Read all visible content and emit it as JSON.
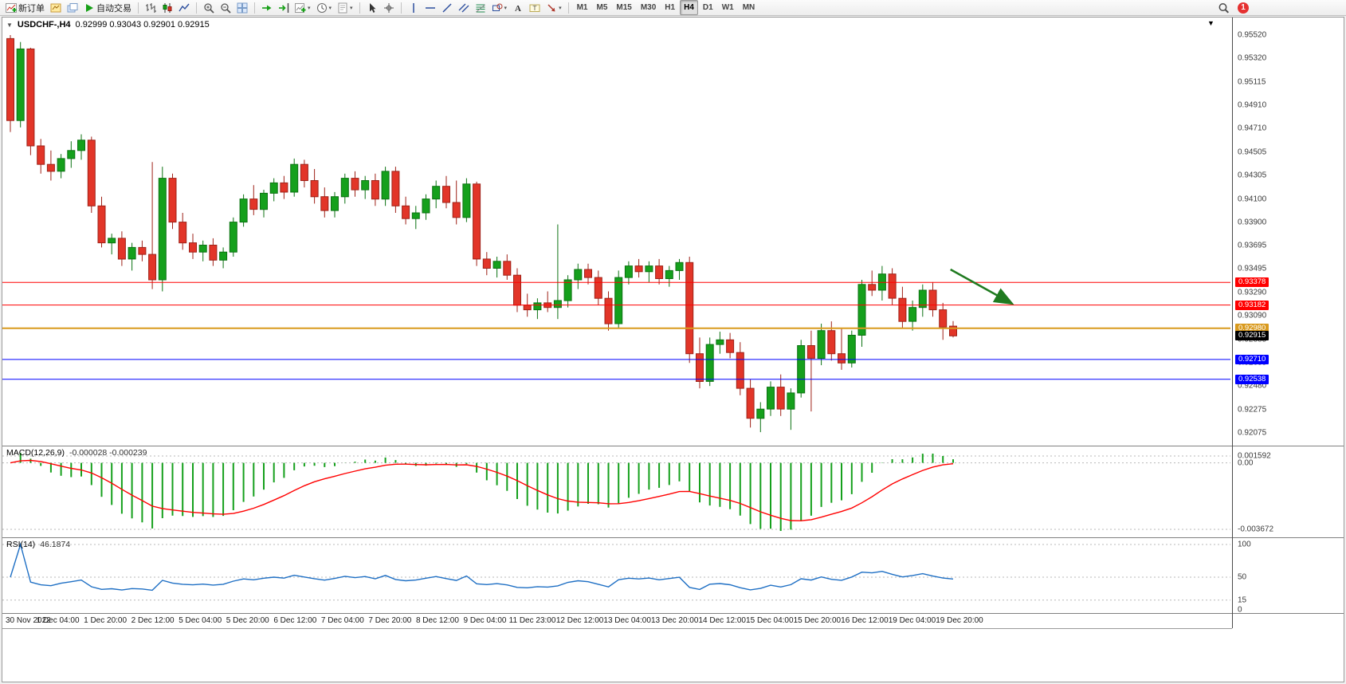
{
  "toolbar": {
    "notification_count": "1",
    "buttons": [
      {
        "name": "new-order",
        "icon": "new-order-icon",
        "label": "新订单"
      },
      {
        "name": "charts",
        "icon": "chart-window-icon"
      },
      {
        "name": "profiles",
        "icon": "profiles-icon"
      },
      {
        "name": "autotrading",
        "icon": "play-icon",
        "label": "自动交易"
      },
      {
        "type": "sep"
      },
      {
        "name": "bar-chart",
        "icon": "bar-chart-icon"
      },
      {
        "name": "candlestick-chart",
        "icon": "candlestick-icon"
      },
      {
        "name": "line-chart",
        "icon": "line-chart-icon"
      },
      {
        "type": "sep"
      },
      {
        "name": "zoom-in",
        "icon": "zoom-in-icon"
      },
      {
        "name": "zoom-out",
        "icon": "zoom-out-icon"
      },
      {
        "name": "tile-windows",
        "icon": "tile-windows-icon"
      },
      {
        "type": "sep"
      },
      {
        "name": "auto-scroll",
        "icon": "auto-scroll-icon"
      },
      {
        "name": "chart-shift",
        "icon": "chart-shift-icon"
      },
      {
        "name": "new-chart",
        "icon": "plus-chart-icon",
        "caret": true
      },
      {
        "name": "periods",
        "icon": "clock-icon",
        "caret": true
      },
      {
        "name": "templates",
        "icon": "template-icon",
        "caret": true
      },
      {
        "type": "sep"
      },
      {
        "name": "cursor",
        "icon": "cursor-icon"
      },
      {
        "name": "crosshair",
        "icon": "crosshair-icon"
      },
      {
        "type": "sep"
      },
      {
        "name": "vertical-line",
        "icon": "vertical-line-icon"
      },
      {
        "name": "horizontal-line",
        "icon": "horizontal-line-icon"
      },
      {
        "name": "trendline",
        "icon": "trendline-icon"
      },
      {
        "name": "equidistant-channel",
        "icon": "channel-icon"
      },
      {
        "name": "fibonacci",
        "icon": "fibonacci-icon"
      },
      {
        "name": "shapes",
        "icon": "shapes-icon",
        "caret": true
      },
      {
        "name": "text",
        "icon": "text-icon"
      },
      {
        "name": "text-label",
        "icon": "text-label-icon"
      },
      {
        "name": "arrows",
        "icon": "arrow-style-icon",
        "caret": true
      },
      {
        "type": "sep"
      }
    ],
    "timeframes": {
      "labels": [
        "M1",
        "M5",
        "M15",
        "M30",
        "H1",
        "H4",
        "D1",
        "W1",
        "MN"
      ],
      "active": "H4"
    }
  },
  "chart": {
    "symbol_period": "USDCHF-,H4",
    "ohlc_text": "0.92999 0.93043 0.92901 0.92915"
  },
  "time_axis": {
    "labels": [
      "30 Nov 2022",
      "1 Dec 04:00",
      "1 Dec 20:00",
      "2 Dec 12:00",
      "5 Dec 04:00",
      "5 Dec 20:00",
      "6 Dec 12:00",
      "7 Dec 04:00",
      "7 Dec 20:00",
      "8 Dec 12:00",
      "9 Dec 04:00",
      "11 Dec 23:00",
      "12 Dec 12:00",
      "13 Dec 04:00",
      "13 Dec 20:00",
      "14 Dec 12:00",
      "15 Dec 04:00",
      "15 Dec 20:00",
      "16 Dec 12:00",
      "19 Dec 04:00",
      "19 Dec 20:00"
    ]
  },
  "chart_data": [
    {
      "type": "candlestick",
      "symbol": "USDCHF-",
      "timeframe": "H4",
      "current_bar": {
        "open": 0.92999,
        "high": 0.93043,
        "low": 0.92901,
        "close": 0.92915
      },
      "up_color": "#15a01c",
      "down_color": "#e23528",
      "y_axis_ticks": [
        "0.95520",
        "0.95320",
        "0.95115",
        "0.94910",
        "0.94710",
        "0.94505",
        "0.94305",
        "0.94100",
        "0.93900",
        "0.93695",
        "0.93495",
        "0.93290",
        "0.93090",
        "0.92885",
        "0.92685",
        "0.92480",
        "0.92275",
        "0.92075"
      ],
      "horizontal_lines": [
        {
          "price": 0.93378,
          "label": "0.93378",
          "color": "#ff0000",
          "width": 1
        },
        {
          "price": 0.93182,
          "label": "0.93182",
          "color": "#ff0000",
          "width": 1
        },
        {
          "price": 0.9298,
          "label": "0.92980",
          "color": "#d99a1e",
          "width": 2
        },
        {
          "price": 0.9271,
          "label": "0.92710",
          "color": "#0000ff",
          "width": 1
        },
        {
          "price": 0.92538,
          "label": "0.92538",
          "color": "#0000ff",
          "width": 1
        }
      ],
      "current_price_tag": {
        "price": 0.92915,
        "label": "0.92915",
        "bg": "#000000"
      },
      "annotation_arrow": {
        "color": "#1f7a1f",
        "x1_frac": 0.772,
        "price1": 0.9349,
        "x2_frac": 0.821,
        "price2": 0.932
      },
      "candles": [
        [
          0.9549,
          0.9552,
          0.9468,
          0.9478
        ],
        [
          0.9478,
          0.9546,
          0.9472,
          0.954
        ],
        [
          0.954,
          0.9541,
          0.9448,
          0.9456
        ],
        [
          0.9456,
          0.9462,
          0.9432,
          0.944
        ],
        [
          0.944,
          0.9452,
          0.9426,
          0.9434
        ],
        [
          0.9434,
          0.9449,
          0.9428,
          0.9445
        ],
        [
          0.9445,
          0.946,
          0.9437,
          0.9452
        ],
        [
          0.9452,
          0.9466,
          0.9444,
          0.9461
        ],
        [
          0.9461,
          0.9464,
          0.9398,
          0.9404
        ],
        [
          0.9404,
          0.9412,
          0.9368,
          0.9372
        ],
        [
          0.9372,
          0.938,
          0.9362,
          0.9376
        ],
        [
          0.9376,
          0.9382,
          0.9352,
          0.9358
        ],
        [
          0.9358,
          0.9372,
          0.9348,
          0.9368
        ],
        [
          0.9368,
          0.9374,
          0.9356,
          0.9362
        ],
        [
          0.9362,
          0.9442,
          0.9332,
          0.934
        ],
        [
          0.934,
          0.9438,
          0.933,
          0.9428
        ],
        [
          0.9428,
          0.9432,
          0.9384,
          0.939
        ],
        [
          0.939,
          0.9398,
          0.9366,
          0.9372
        ],
        [
          0.9372,
          0.938,
          0.9358,
          0.9364
        ],
        [
          0.9364,
          0.9374,
          0.9356,
          0.937
        ],
        [
          0.937,
          0.9376,
          0.9352,
          0.9357
        ],
        [
          0.9357,
          0.9368,
          0.935,
          0.9364
        ],
        [
          0.9364,
          0.9394,
          0.936,
          0.939
        ],
        [
          0.939,
          0.9414,
          0.9386,
          0.941
        ],
        [
          0.941,
          0.9422,
          0.9396,
          0.9401
        ],
        [
          0.9401,
          0.9418,
          0.9394,
          0.9415
        ],
        [
          0.9415,
          0.9428,
          0.9408,
          0.9424
        ],
        [
          0.9424,
          0.943,
          0.941,
          0.9416
        ],
        [
          0.9416,
          0.9445,
          0.9412,
          0.944
        ],
        [
          0.944,
          0.9444,
          0.942,
          0.9426
        ],
        [
          0.9426,
          0.9436,
          0.9406,
          0.9412
        ],
        [
          0.9412,
          0.942,
          0.9394,
          0.94
        ],
        [
          0.94,
          0.9416,
          0.9394,
          0.9412
        ],
        [
          0.9412,
          0.9432,
          0.9406,
          0.9428
        ],
        [
          0.9428,
          0.9434,
          0.9412,
          0.9418
        ],
        [
          0.9418,
          0.943,
          0.941,
          0.9426
        ],
        [
          0.9426,
          0.9432,
          0.9404,
          0.941
        ],
        [
          0.941,
          0.9438,
          0.9404,
          0.9434
        ],
        [
          0.9434,
          0.9438,
          0.9398,
          0.9404
        ],
        [
          0.9404,
          0.9412,
          0.9388,
          0.9393
        ],
        [
          0.9393,
          0.9404,
          0.9384,
          0.9398
        ],
        [
          0.9398,
          0.9414,
          0.9392,
          0.941
        ],
        [
          0.941,
          0.9426,
          0.9402,
          0.9421
        ],
        [
          0.9421,
          0.943,
          0.9402,
          0.9407
        ],
        [
          0.9407,
          0.9426,
          0.9388,
          0.9394
        ],
        [
          0.9394,
          0.9428,
          0.939,
          0.9423
        ],
        [
          0.9423,
          0.9425,
          0.9352,
          0.9358
        ],
        [
          0.9358,
          0.9364,
          0.9344,
          0.935
        ],
        [
          0.935,
          0.936,
          0.9342,
          0.9356
        ],
        [
          0.9356,
          0.9362,
          0.934,
          0.9344
        ],
        [
          0.9344,
          0.935,
          0.9312,
          0.9318
        ],
        [
          0.9318,
          0.9328,
          0.9308,
          0.9314
        ],
        [
          0.9314,
          0.9324,
          0.9306,
          0.932
        ],
        [
          0.932,
          0.933,
          0.9312,
          0.9316
        ],
        [
          0.9316,
          0.9388,
          0.9306,
          0.9322
        ],
        [
          0.9322,
          0.9344,
          0.9316,
          0.934
        ],
        [
          0.934,
          0.9354,
          0.9332,
          0.9349
        ],
        [
          0.9349,
          0.9354,
          0.9336,
          0.9342
        ],
        [
          0.9342,
          0.9348,
          0.9318,
          0.9324
        ],
        [
          0.9324,
          0.933,
          0.9296,
          0.9302
        ],
        [
          0.9302,
          0.9348,
          0.9298,
          0.9342
        ],
        [
          0.9342,
          0.9356,
          0.9336,
          0.9352
        ],
        [
          0.9352,
          0.9358,
          0.9342,
          0.9347
        ],
        [
          0.9347,
          0.9356,
          0.9338,
          0.9352
        ],
        [
          0.9352,
          0.9358,
          0.9336,
          0.9341
        ],
        [
          0.9341,
          0.9352,
          0.9334,
          0.9348
        ],
        [
          0.9348,
          0.9358,
          0.934,
          0.9355
        ],
        [
          0.9355,
          0.936,
          0.9268,
          0.9276
        ],
        [
          0.9276,
          0.929,
          0.9246,
          0.9252
        ],
        [
          0.9252,
          0.929,
          0.9248,
          0.9284
        ],
        [
          0.9284,
          0.9295,
          0.9276,
          0.9288
        ],
        [
          0.9288,
          0.9294,
          0.9272,
          0.9277
        ],
        [
          0.9277,
          0.9286,
          0.924,
          0.9246
        ],
        [
          0.9246,
          0.9254,
          0.9212,
          0.922
        ],
        [
          0.922,
          0.9234,
          0.9208,
          0.9228
        ],
        [
          0.9228,
          0.9252,
          0.9222,
          0.9247
        ],
        [
          0.9247,
          0.9258,
          0.9222,
          0.9228
        ],
        [
          0.9228,
          0.9246,
          0.921,
          0.9242
        ],
        [
          0.9242,
          0.9288,
          0.9238,
          0.9283
        ],
        [
          0.9283,
          0.9296,
          0.9226,
          0.9272
        ],
        [
          0.9272,
          0.9302,
          0.9266,
          0.9296
        ],
        [
          0.9296,
          0.9304,
          0.927,
          0.9276
        ],
        [
          0.9276,
          0.9298,
          0.9262,
          0.9268
        ],
        [
          0.9268,
          0.9296,
          0.9264,
          0.9292
        ],
        [
          0.9292,
          0.934,
          0.9282,
          0.9336
        ],
        [
          0.9336,
          0.9348,
          0.9326,
          0.9331
        ],
        [
          0.9331,
          0.9352,
          0.9322,
          0.9345
        ],
        [
          0.9345,
          0.935,
          0.9318,
          0.9324
        ],
        [
          0.9324,
          0.9334,
          0.9298,
          0.9304
        ],
        [
          0.9304,
          0.9322,
          0.9296,
          0.9316
        ],
        [
          0.9316,
          0.9336,
          0.9308,
          0.9331
        ],
        [
          0.9331,
          0.9338,
          0.9308,
          0.9314
        ],
        [
          0.9314,
          0.932,
          0.9288,
          0.9299
        ],
        [
          0.92999,
          0.93043,
          0.92901,
          0.92915
        ]
      ]
    },
    {
      "type": "line",
      "name": "MACD(12,26,9)",
      "values_text": "-0.000028 -0.000239",
      "params": {
        "fast": 12,
        "slow": 26,
        "signal": 9
      },
      "y_ticks": [
        "0.001592",
        "0.00",
        "-0.003672"
      ],
      "histogram_color": "#15a01c",
      "signal_color": "#ff0000"
    },
    {
      "type": "line",
      "name": "RSI(14)",
      "values_text": "46.1874",
      "params": {
        "period": 14
      },
      "y_ticks": [
        "100",
        "50",
        "15",
        "0"
      ],
      "line_color": "#1e6fc4"
    }
  ]
}
